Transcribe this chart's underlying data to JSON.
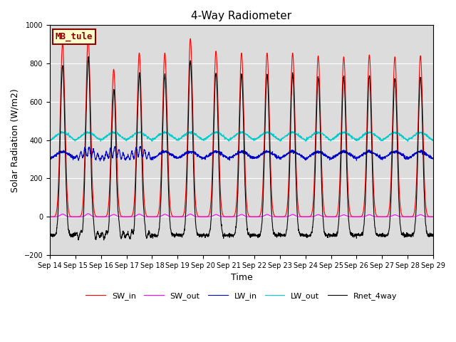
{
  "title": "4-Way Radiometer",
  "xlabel": "Time",
  "ylabel": "Solar Radiation (W/m2)",
  "station_label": "MB_tule",
  "ylim": [
    -200,
    1000
  ],
  "yticks": [
    -200,
    0,
    200,
    400,
    600,
    800,
    1000
  ],
  "start_day": 14,
  "n_days": 15,
  "lines": {
    "SW_in": {
      "color": "#ff0000",
      "lw": 0.8
    },
    "SW_out": {
      "color": "#ff00ff",
      "lw": 0.8
    },
    "LW_in": {
      "color": "#0000cc",
      "lw": 0.8
    },
    "LW_out": {
      "color": "#00cccc",
      "lw": 0.8
    },
    "Rnet_4way": {
      "color": "#000000",
      "lw": 0.8
    }
  },
  "SW_in_peaks": [
    905,
    940,
    770,
    855,
    855,
    930,
    865,
    855,
    855,
    855,
    840,
    835,
    845,
    835,
    840
  ],
  "SW_out_peaks": [
    14,
    16,
    12,
    14,
    13,
    14,
    12,
    12,
    12,
    12,
    11,
    10,
    11,
    10,
    11
  ],
  "LW_in_base": 300,
  "LW_out_base": 390,
  "Rnet_night": -100,
  "bg_color": "#dcdcdc",
  "fig_bg": "#ffffff",
  "label_bg": "#ffffcc",
  "label_border": "#8b0000",
  "label_fontsize": 9,
  "title_fontsize": 11,
  "tick_fontsize": 7,
  "axis_fontsize": 9,
  "legend_fontsize": 8
}
